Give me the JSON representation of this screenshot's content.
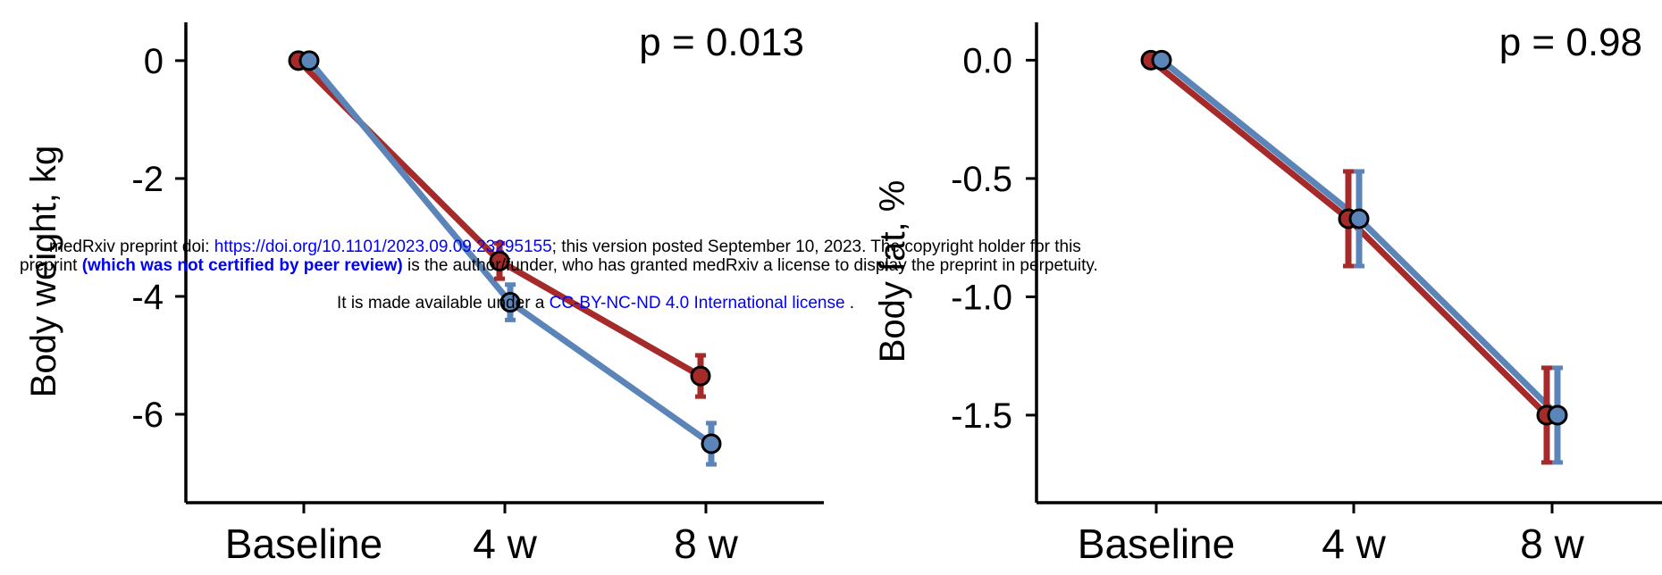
{
  "chart_data": [
    {
      "type": "line",
      "ylabel": "Body weight, kg",
      "xlabel": "",
      "categories": [
        "Baseline",
        "4 w",
        "8 w"
      ],
      "yticks": [
        "0",
        "-2",
        "-4",
        "-6"
      ],
      "ytick_values": [
        0,
        -2,
        -4,
        -6
      ],
      "ylim": [
        -7.5,
        0.65
      ],
      "annotation": "p =  0.013",
      "series": [
        {
          "color": "#A52A2A",
          "values": [
            0,
            -3.4,
            -5.35
          ],
          "err": [
            0,
            0.3,
            0.35
          ]
        },
        {
          "color": "#5B84B8",
          "values": [
            0,
            -4.1,
            -6.5
          ],
          "err": [
            0,
            0.3,
            0.35
          ]
        }
      ]
    },
    {
      "type": "line",
      "ylabel": "Body fat, %",
      "xlabel": "",
      "categories": [
        "Baseline",
        "4 w",
        "8 w"
      ],
      "yticks": [
        "0.0",
        "-0.5",
        "-1.0",
        "-1.5"
      ],
      "ytick_values": [
        0,
        -0.5,
        -1.0,
        -1.5
      ],
      "ylim": [
        -1.87,
        0.16
      ],
      "annotation": "p =  0.98",
      "series": [
        {
          "color": "#A52A2A",
          "values": [
            0,
            -0.67,
            -1.5
          ],
          "err": [
            0,
            0.2,
            0.2
          ]
        },
        {
          "color": "#5B84B8",
          "values": [
            0,
            -0.67,
            -1.5
          ],
          "err": [
            0,
            0.2,
            0.2
          ]
        }
      ]
    }
  ],
  "watermark": {
    "line1_text": "medRxiv preprint doi: ",
    "line1_link": "https://doi.org/10.1101/2023.09.09.23295155",
    "line1_rest": "; this version posted September 10, 2023. The copyright holder for this",
    "line2_start": "preprint ",
    "line2_bold": "(which was not certified by peer review)",
    "line2_rest": " is the author/funder, who has granted medRxiv a license to display the preprint in perpetuity.",
    "line3_text": "It is made available under a ",
    "line3_link": "CC-BY-NC-ND 4.0 International license",
    "line3_end": " ."
  }
}
